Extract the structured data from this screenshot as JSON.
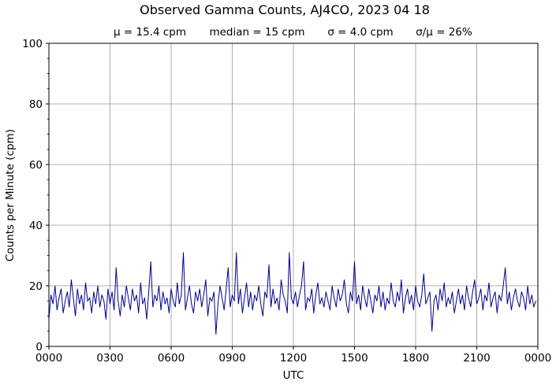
{
  "chart_data": {
    "type": "line",
    "title": "Observed Gamma Counts, AJ4CO, 2023 04 18",
    "subtitle": [
      "μ = 15.4 cpm",
      "median = 15 cpm",
      "σ = 4.0 cpm",
      "σ/μ = 26%"
    ],
    "xlabel": "UTC",
    "ylabel": "Counts per Minute (cpm)",
    "xlim_hours": [
      0,
      24
    ],
    "ylim": [
      0,
      100
    ],
    "x_ticks": [
      "0000",
      "0300",
      "0600",
      "0900",
      "1200",
      "1500",
      "1800",
      "2100",
      "0000"
    ],
    "y_ticks": [
      "0",
      "20",
      "40",
      "60",
      "80",
      "100"
    ],
    "grid": true,
    "line_color": "#00008b",
    "sample_interval_minutes": 6,
    "series": [
      {
        "values": [
          9,
          17,
          14,
          20,
          12,
          16,
          19,
          11,
          15,
          18,
          13,
          22,
          16,
          10,
          19,
          14,
          17,
          12,
          21,
          15,
          16,
          11,
          18,
          14,
          20,
          13,
          17,
          15,
          9,
          19,
          14,
          18,
          12,
          26,
          15,
          10,
          17,
          13,
          20,
          16,
          12,
          19,
          15,
          17,
          11,
          21,
          14,
          16,
          9,
          18,
          28,
          13,
          17,
          15,
          20,
          12,
          18,
          14,
          16,
          11,
          19,
          15,
          13,
          21,
          14,
          17,
          31,
          12,
          16,
          20,
          14,
          11,
          18,
          15,
          19,
          13,
          17,
          22,
          10,
          16,
          15,
          18,
          4,
          14,
          20,
          16,
          12,
          19,
          26,
          13,
          17,
          15,
          31,
          14,
          19,
          11,
          16,
          21,
          13,
          18,
          12,
          17,
          15,
          20,
          14,
          10,
          18,
          16,
          27,
          13,
          19,
          14,
          16,
          12,
          22,
          17,
          15,
          11,
          31,
          16,
          14,
          18,
          13,
          17,
          20,
          28,
          12,
          16,
          15,
          19,
          11,
          17,
          21,
          14,
          16,
          13,
          18,
          15,
          12,
          20,
          16,
          13,
          19,
          15,
          17,
          22,
          14,
          11,
          18,
          15,
          28,
          14,
          17,
          12,
          20,
          16,
          13,
          19,
          15,
          11,
          17,
          15,
          20,
          13,
          18,
          12,
          16,
          14,
          21,
          15,
          13,
          18,
          15,
          22,
          11,
          16,
          19,
          14,
          17,
          12,
          20,
          15,
          13,
          17,
          24,
          14,
          16,
          18,
          5,
          15,
          17,
          12,
          19,
          15,
          21,
          13,
          16,
          14,
          18,
          11,
          15,
          19,
          14,
          17,
          12,
          20,
          16,
          13,
          18,
          22,
          14,
          16,
          19,
          12,
          17,
          15,
          21,
          13,
          16,
          18,
          11,
          17,
          15,
          20,
          26,
          14,
          18,
          12,
          16,
          19,
          15,
          13,
          18,
          16,
          12,
          20,
          14,
          17,
          13,
          15
        ]
      }
    ]
  }
}
